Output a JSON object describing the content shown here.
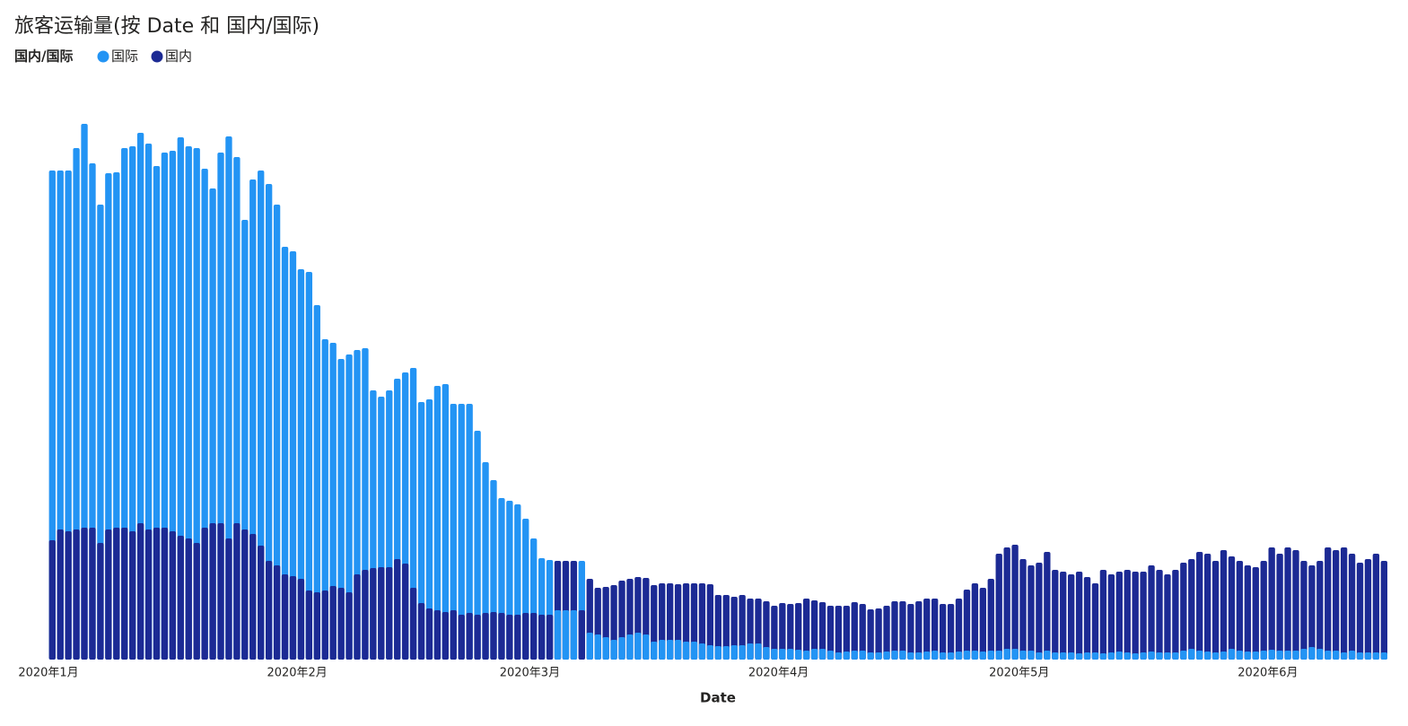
{
  "chart_data": {
    "type": "column",
    "title": "旅客运输量(按 Date 和 国内/国际)",
    "x_label": "Date",
    "legend_title": "国内/国际",
    "categories": [
      "2020年1月",
      null,
      null,
      null,
      null,
      null,
      null,
      null,
      null,
      null,
      null,
      null,
      null,
      null,
      null,
      null,
      null,
      null,
      null,
      null,
      null,
      null,
      null,
      null,
      null,
      null,
      null,
      null,
      null,
      null,
      null,
      "2020年2月",
      null,
      null,
      null,
      null,
      null,
      null,
      null,
      null,
      null,
      null,
      null,
      null,
      null,
      null,
      null,
      null,
      null,
      null,
      null,
      null,
      null,
      null,
      null,
      null,
      null,
      null,
      null,
      null,
      "2020年3月",
      null,
      null,
      null,
      null,
      null,
      null,
      null,
      null,
      null,
      null,
      null,
      null,
      null,
      null,
      null,
      null,
      null,
      null,
      null,
      null,
      null,
      null,
      null,
      null,
      null,
      null,
      null,
      null,
      null,
      null,
      "2020年4月",
      null,
      null,
      null,
      null,
      null,
      null,
      null,
      null,
      null,
      null,
      null,
      null,
      null,
      null,
      null,
      null,
      null,
      null,
      null,
      null,
      null,
      null,
      null,
      null,
      null,
      null,
      null,
      null,
      null,
      "2020年5月",
      null,
      null,
      null,
      null,
      null,
      null,
      null,
      null,
      null,
      null,
      null,
      null,
      null,
      null,
      null,
      null,
      null,
      null,
      null,
      null,
      null,
      null,
      null,
      null,
      null,
      null,
      null,
      null,
      null,
      null,
      "2020年6月",
      null,
      null,
      null,
      null,
      null,
      null,
      null,
      null,
      null,
      null,
      null,
      null,
      null,
      null
    ],
    "ylim": [
      0,
      620
    ],
    "series": [
      {
        "name": "国际",
        "color": "#2394f4",
        "values": [
          545,
          545,
          545,
          570,
          597,
          553,
          507,
          542,
          543,
          570,
          572,
          587,
          575,
          550,
          565,
          567,
          582,
          572,
          570,
          547,
          525,
          565,
          583,
          560,
          490,
          535,
          545,
          530,
          507,
          460,
          455,
          435,
          432,
          395,
          357,
          353,
          335,
          340,
          345,
          347,
          300,
          293,
          300,
          313,
          320,
          325,
          287,
          290,
          305,
          307,
          285,
          285,
          285,
          255,
          220,
          200,
          180,
          177,
          173,
          157,
          135,
          113,
          111,
          55,
          55,
          55,
          110,
          30,
          28,
          25,
          22,
          25,
          28,
          30,
          28,
          20,
          22,
          22,
          22,
          20,
          20,
          18,
          16,
          15,
          15,
          16,
          16,
          18,
          18,
          14,
          12,
          12,
          12,
          11,
          10,
          12,
          12,
          10,
          8,
          9,
          10,
          10,
          8,
          8,
          9,
          10,
          10,
          8,
          8,
          9,
          10,
          8,
          8,
          9,
          10,
          10,
          9,
          10,
          10,
          12,
          12,
          10,
          10,
          8,
          10,
          8,
          8,
          8,
          7,
          8,
          8,
          7,
          8,
          9,
          8,
          7,
          8,
          9,
          8,
          8,
          8,
          10,
          12,
          10,
          9,
          8,
          9,
          12,
          10,
          9,
          9,
          10,
          11,
          10,
          10,
          10,
          12,
          14,
          12,
          10,
          10,
          8,
          10,
          8,
          8,
          8,
          8
        ]
      },
      {
        "name": "国内",
        "color": "#1c2a94",
        "values": [
          133,
          145,
          143,
          145,
          147,
          147,
          130,
          145,
          147,
          147,
          143,
          152,
          145,
          147,
          147,
          143,
          138,
          135,
          130,
          147,
          152,
          152,
          135,
          152,
          145,
          140,
          127,
          110,
          105,
          95,
          93,
          90,
          77,
          75,
          77,
          82,
          80,
          75,
          95,
          100,
          102,
          103,
          103,
          112,
          107,
          80,
          63,
          57,
          55,
          53,
          55,
          50,
          52,
          50,
          52,
          53,
          52,
          50,
          50,
          52,
          52,
          50,
          50,
          110,
          110,
          110,
          55,
          90,
          80,
          81,
          83,
          88,
          90,
          92,
          91,
          83,
          85,
          85,
          84,
          85,
          85,
          85,
          84,
          72,
          72,
          70,
          72,
          68,
          68,
          65,
          60,
          63,
          62,
          63,
          68,
          66,
          64,
          60,
          60,
          60,
          64,
          62,
          56,
          57,
          60,
          65,
          65,
          62,
          65,
          68,
          68,
          62,
          62,
          68,
          78,
          85,
          80,
          90,
          118,
          125,
          128,
          112,
          105,
          108,
          120,
          100,
          98,
          95,
          98,
          92,
          85,
          100,
          95,
          98,
          100,
          98,
          98,
          105,
          100,
          95,
          100,
          108,
          112,
          120,
          118,
          110,
          122,
          115,
          110,
          105,
          103,
          110,
          125,
          118,
          125,
          122,
          110,
          105,
          110,
          125,
          122,
          125,
          118,
          108,
          112,
          118,
          110
        ]
      }
    ]
  }
}
